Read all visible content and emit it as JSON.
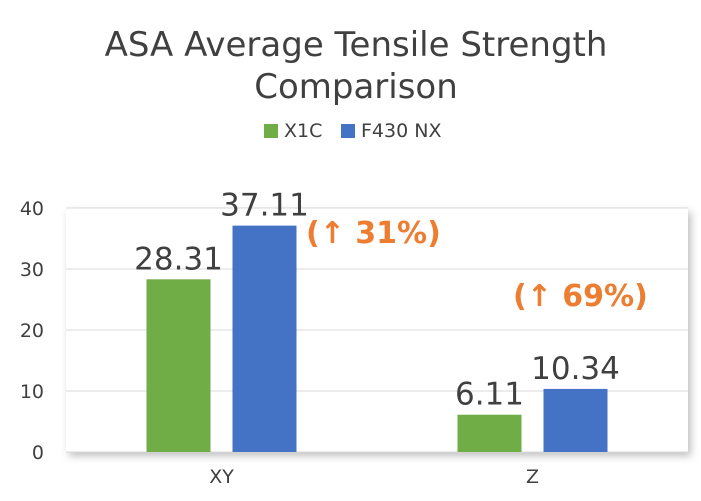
{
  "chart_data": {
    "type": "bar",
    "title": "ASA Average Tensile Strength Comparison",
    "title_lines": [
      "ASA Average Tensile Strength",
      "Comparison"
    ],
    "categories": [
      "XY",
      "Z"
    ],
    "series": [
      {
        "name": "X1C",
        "values": [
          28.31,
          6.11
        ],
        "color": "#70ad47"
      },
      {
        "name": "F430 NX",
        "values": [
          37.11,
          10.34
        ],
        "color": "#4472c4"
      }
    ],
    "data_labels": [
      [
        "28.31",
        "6.11"
      ],
      [
        "37.11",
        "10.34"
      ]
    ],
    "annotations": [
      "(↑ 31%)",
      "(↑ 69%)"
    ],
    "annotation_color": "#ed7d31",
    "ylim": [
      0,
      40
    ],
    "yticks": [
      "0",
      "10",
      "20",
      "30",
      "40"
    ],
    "grid": true,
    "legend_position": "top"
  }
}
